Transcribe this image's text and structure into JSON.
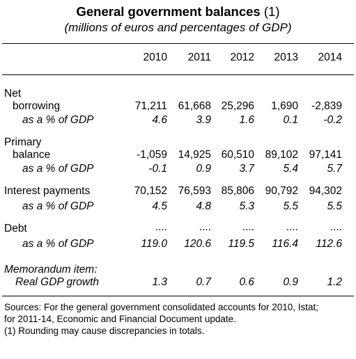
{
  "title": "General government balances",
  "title_note": "(1)",
  "subtitle": "(millions of euros and percentages of GDP)",
  "years": [
    "2010",
    "2011",
    "2012",
    "2013",
    "2014"
  ],
  "rows": [
    {
      "label": "Net",
      "label2": "borrowing",
      "values": [
        "71,211",
        "61,668",
        "25,296",
        "1,690",
        "-2,839"
      ]
    },
    {
      "label": "as a % of GDP",
      "italic": true,
      "values": [
        "4.6",
        "3.9",
        "1.6",
        "0.1",
        "-0.2"
      ]
    },
    {
      "label": "Primary",
      "label2": "balance",
      "values": [
        "-1,059",
        "14,925",
        "60,510",
        "89,102",
        "97,141"
      ]
    },
    {
      "label": "as a % of GDP",
      "italic": true,
      "values": [
        "-0.1",
        "0.9",
        "3.7",
        "5.4",
        "5.7"
      ]
    },
    {
      "label": "Interest payments",
      "values": [
        "70,152",
        "76,593",
        "85,806",
        "90,792",
        "94,302"
      ]
    },
    {
      "label": "as a % of GDP",
      "italic": true,
      "values": [
        "4.5",
        "4.8",
        "5.3",
        "5.5",
        "5.5"
      ]
    },
    {
      "label": "Debt",
      "values": [
        "....",
        "....",
        "....",
        "....",
        "...."
      ]
    },
    {
      "label": "as a % of GDP",
      "italic": true,
      "values": [
        "119.0",
        "120.6",
        "119.5",
        "116.4",
        "112.6"
      ]
    },
    {
      "label": "Memorandum item:",
      "italic": true
    },
    {
      "label": "Real GDP growth",
      "italic": true,
      "values": [
        "1.3",
        "0.7",
        "0.6",
        "0.9",
        "1.2"
      ]
    }
  ],
  "sources": [
    "Sources: For the general government consolidated accounts for 2010, Istat;",
    "for 2011-14, Economic and Financial Document update.",
    "(1) Rounding may cause discrepancies in totals."
  ]
}
